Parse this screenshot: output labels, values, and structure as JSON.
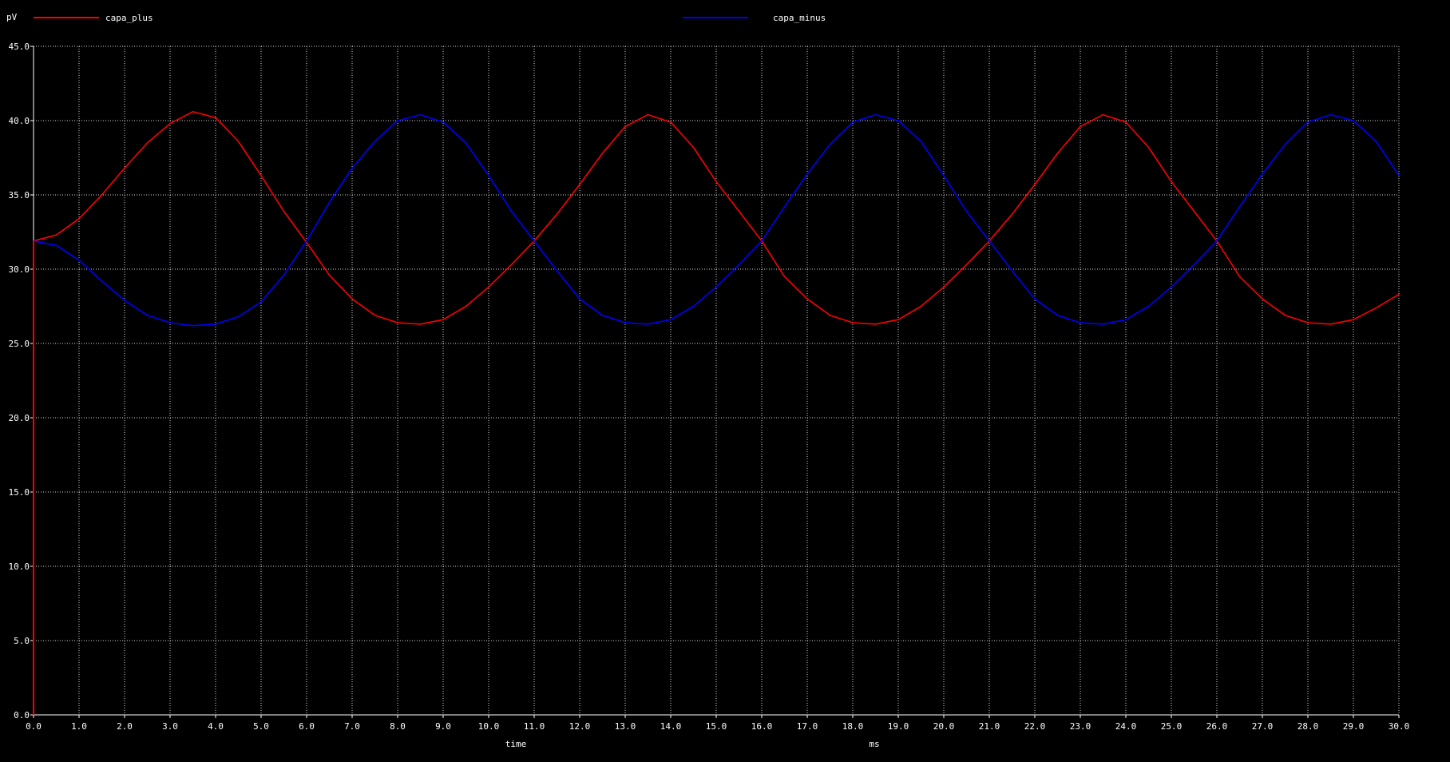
{
  "chart_data": {
    "type": "line",
    "ylabel": "pV",
    "xlabel": "time",
    "xunit": "ms",
    "xlim": [
      0,
      30
    ],
    "ylim": [
      0,
      45
    ],
    "xticks": [
      "0.0",
      "1.0",
      "2.0",
      "3.0",
      "4.0",
      "5.0",
      "6.0",
      "7.0",
      "8.0",
      "9.0",
      "10.0",
      "11.0",
      "12.0",
      "13.0",
      "14.0",
      "15.0",
      "16.0",
      "17.0",
      "18.0",
      "19.0",
      "20.0",
      "21.0",
      "22.0",
      "23.0",
      "24.0",
      "25.0",
      "26.0",
      "27.0",
      "28.0",
      "29.0",
      "30.0"
    ],
    "yticks": [
      "0.0",
      "5.0",
      "10.0",
      "15.0",
      "20.0",
      "25.0",
      "30.0",
      "35.0",
      "40.0",
      "45.0"
    ],
    "grid": true,
    "legend_position": "top",
    "series": [
      {
        "name": "capa_plus",
        "color": "#ff0000",
        "x": [
          0.0,
          0.5,
          1.0,
          1.5,
          2.0,
          2.5,
          3.0,
          3.5,
          4.0,
          4.5,
          5.0,
          5.5,
          6.0,
          6.5,
          7.0,
          7.5,
          8.0,
          8.5,
          9.0,
          9.5,
          10.0,
          10.5,
          11.0,
          11.5,
          12.0,
          12.5,
          13.0,
          13.5,
          14.0,
          14.5,
          15.0,
          15.5,
          16.0,
          16.5,
          17.0,
          17.5,
          18.0,
          18.5,
          19.0,
          19.5,
          20.0,
          20.5,
          21.0,
          21.5,
          22.0,
          22.5,
          23.0,
          23.5,
          24.0,
          24.5,
          25.0,
          25.5,
          26.0,
          26.5,
          27.0,
          27.5,
          28.0,
          28.5,
          29.0,
          29.5,
          30.0
        ],
        "y": [
          31.9,
          32.3,
          33.4,
          35.0,
          36.8,
          38.5,
          39.8,
          40.6,
          40.2,
          38.6,
          36.3,
          33.9,
          31.8,
          29.6,
          28.0,
          26.9,
          26.4,
          26.3,
          26.6,
          27.5,
          28.8,
          30.3,
          31.9,
          33.7,
          35.7,
          37.8,
          39.6,
          40.4,
          39.9,
          38.2,
          35.9,
          33.9,
          31.9,
          29.5,
          28.0,
          26.9,
          26.4,
          26.3,
          26.6,
          27.5,
          28.8,
          30.3,
          31.9,
          33.7,
          35.7,
          37.8,
          39.6,
          40.4,
          39.9,
          38.2,
          35.9,
          33.9,
          31.9,
          29.5,
          28.0,
          26.9,
          26.4,
          26.3,
          26.6,
          27.4,
          28.3
        ]
      },
      {
        "name": "capa_minus",
        "color": "#0000ff",
        "x": [
          0.0,
          0.5,
          1.0,
          1.5,
          2.0,
          2.5,
          3.0,
          3.5,
          4.0,
          4.5,
          5.0,
          5.5,
          6.0,
          6.5,
          7.0,
          7.5,
          8.0,
          8.5,
          9.0,
          9.5,
          10.0,
          10.5,
          11.0,
          11.5,
          12.0,
          12.5,
          13.0,
          13.5,
          14.0,
          14.5,
          15.0,
          15.5,
          16.0,
          16.5,
          17.0,
          17.5,
          18.0,
          18.5,
          19.0,
          19.5,
          20.0,
          20.5,
          21.0,
          21.5,
          22.0,
          22.5,
          23.0,
          23.5,
          24.0,
          24.5,
          25.0,
          25.5,
          26.0,
          26.5,
          27.0,
          27.5,
          28.0,
          28.5,
          29.0,
          29.5,
          30.0
        ],
        "y": [
          31.9,
          31.6,
          30.6,
          29.2,
          27.9,
          26.9,
          26.4,
          26.2,
          26.3,
          26.8,
          27.8,
          29.6,
          31.9,
          34.5,
          36.8,
          38.6,
          40.0,
          40.4,
          39.9,
          38.5,
          36.3,
          33.9,
          31.9,
          29.9,
          28.0,
          26.9,
          26.4,
          26.3,
          26.6,
          27.5,
          28.8,
          30.3,
          31.9,
          34.2,
          36.4,
          38.4,
          39.9,
          40.4,
          40.0,
          38.6,
          36.3,
          33.9,
          31.9,
          29.9,
          28.0,
          26.9,
          26.4,
          26.3,
          26.6,
          27.5,
          28.8,
          30.3,
          31.9,
          34.2,
          36.4,
          38.4,
          39.9,
          40.4,
          40.0,
          38.6,
          36.3
        ]
      }
    ]
  }
}
